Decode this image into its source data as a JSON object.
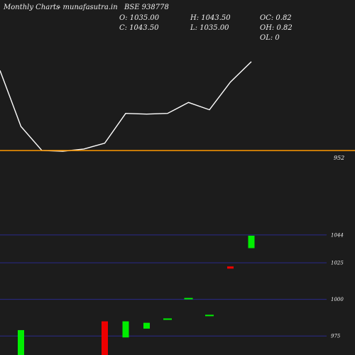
{
  "header": {
    "brand": "Monthly Charts",
    "site": "- munafasutra.in",
    "symbol": "BSE 938778"
  },
  "ohlc": {
    "open": "O: 1035.00",
    "close": "C: 1043.50",
    "high": "H: 1043.50",
    "low": "L: 1035.00",
    "oc": "OC: 0.82",
    "oh": "OH: 0.82",
    "ol": "OL: 0"
  },
  "colors": {
    "background": "#1c1c1c",
    "line": "#ffffff",
    "level_line": "#ff9900",
    "grid": "#2a2a8a",
    "up": "#00ee00",
    "down": "#ee0000"
  },
  "chart_data": [
    {
      "type": "line",
      "title": "",
      "series": [
        {
          "values": [
            1062,
            985,
            952,
            951,
            954,
            962,
            1003,
            1002,
            1003,
            1018,
            1008,
            1046,
            1074
          ]
        }
      ],
      "reference_line": {
        "value": 952,
        "label": "952"
      },
      "ylim": [
        910,
        1110
      ]
    },
    {
      "type": "bar",
      "title": "",
      "tick_labels": [
        {
          "value": 1044,
          "label": "1044"
        },
        {
          "value": 1025,
          "label": "1025"
        },
        {
          "value": 1000,
          "label": "1000"
        },
        {
          "value": 975,
          "label": "975"
        }
      ],
      "ylim": [
        962,
        1059
      ],
      "candles": [
        {
          "open": 961,
          "close": 979,
          "high": 979,
          "low": 961,
          "direction": "up"
        },
        {
          "open": 985,
          "close": 961,
          "high": 985,
          "low": 961,
          "direction": "down"
        },
        {
          "open": 974,
          "close": 985,
          "high": 985,
          "low": 974,
          "direction": "up"
        },
        {
          "open": 980,
          "close": 984,
          "high": 984,
          "low": 980,
          "direction": "up"
        },
        {
          "open": 986,
          "close": 986.5,
          "high": 986.5,
          "low": 986,
          "direction": "up"
        },
        {
          "open": 1000,
          "close": 1000.5,
          "high": 1000.5,
          "low": 1000,
          "direction": "up"
        },
        {
          "open": 988.5,
          "close": 989,
          "high": 989,
          "low": 988.5,
          "direction": "up"
        },
        {
          "open": 1022.5,
          "close": 1021,
          "high": 1022.5,
          "low": 1021,
          "direction": "down"
        },
        {
          "open": 1035,
          "close": 1043.5,
          "high": 1043.5,
          "low": 1035,
          "direction": "up"
        }
      ],
      "candle_slots": [
        1,
        5,
        6,
        7,
        8,
        9,
        10,
        11,
        12
      ]
    }
  ]
}
